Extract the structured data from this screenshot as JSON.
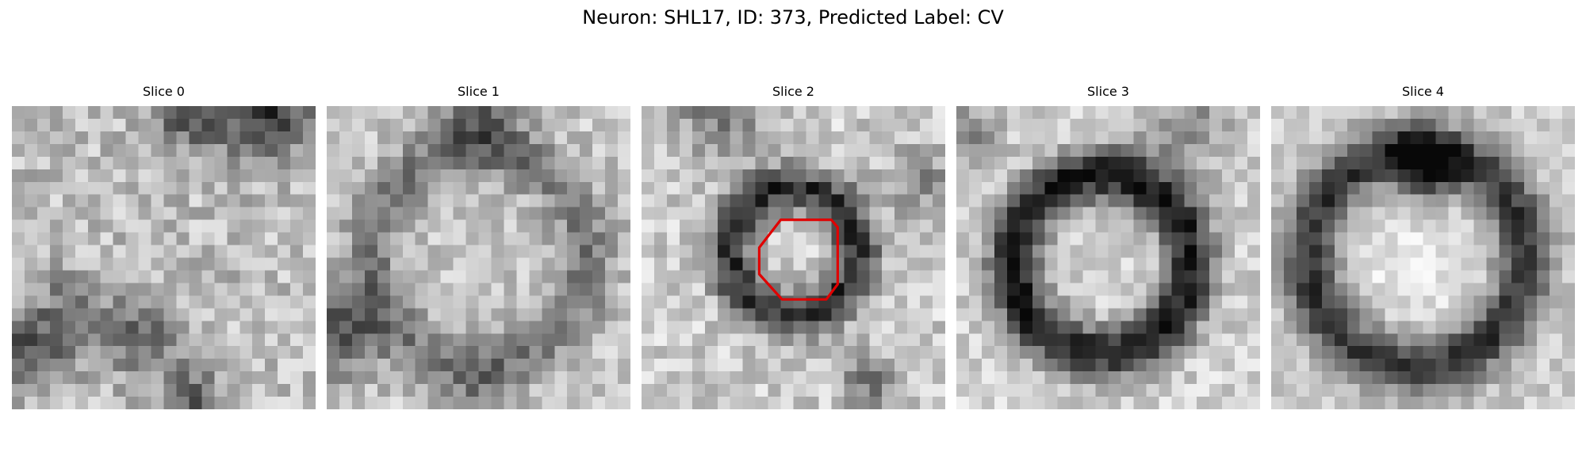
{
  "figure": {
    "title": "Neuron: SHL17, ID: 373, Predicted Label: CV"
  },
  "panels": [
    {
      "title": "Slice 0",
      "has_outline": false
    },
    {
      "title": "Slice 1",
      "has_outline": false
    },
    {
      "title": "Slice 2",
      "has_outline": true,
      "outline_color": "#e00000"
    },
    {
      "title": "Slice 3",
      "has_outline": false
    },
    {
      "title": "Slice 4",
      "has_outline": false
    }
  ],
  "image_style": {
    "colormap": "grayscale",
    "pixel_grid": "24x24"
  }
}
